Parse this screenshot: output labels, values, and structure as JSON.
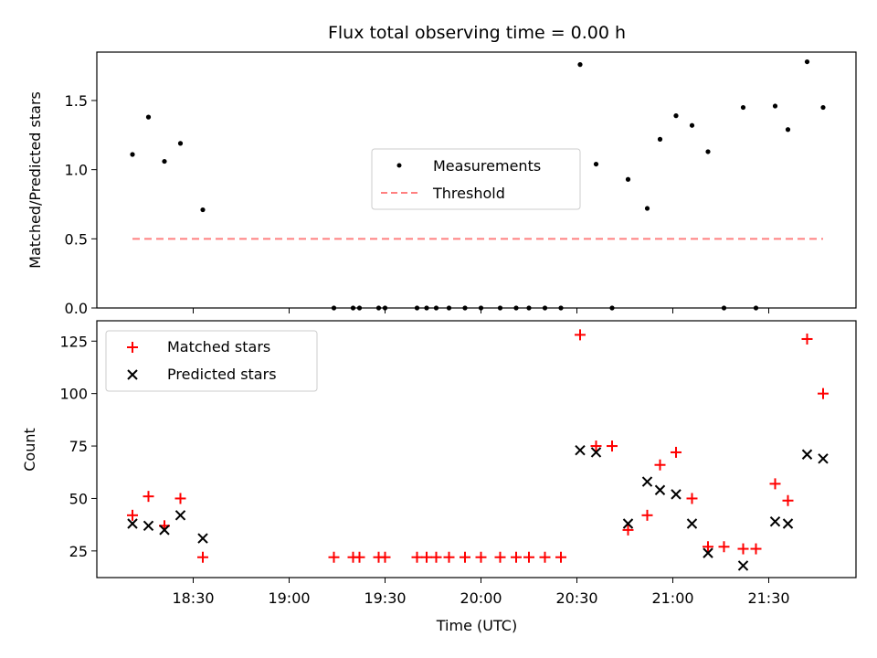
{
  "chart_data": [
    {
      "type": "scatter",
      "title": "Flux total observing time = 0.00 h",
      "xlabel": "",
      "ylabel": "Matched/Predicted stars",
      "ylim": [
        0,
        1.85
      ],
      "yticks": [
        "0.0",
        "0.5",
        "1.0",
        "1.5"
      ],
      "legend_position": "center",
      "series": [
        {
          "name": "Measurements",
          "color": "#000000",
          "marker": "dot",
          "x": [
            "18:11",
            "18:16",
            "18:21",
            "18:26",
            "18:33",
            "19:14",
            "19:20",
            "19:22",
            "19:28",
            "19:30",
            "19:40",
            "19:43",
            "19:46",
            "19:50",
            "19:55",
            "20:00",
            "20:06",
            "20:11",
            "20:15",
            "20:20",
            "20:25",
            "20:31",
            "20:36",
            "20:41",
            "20:46",
            "20:52",
            "20:56",
            "21:01",
            "21:06",
            "21:11",
            "21:16",
            "21:22",
            "21:26",
            "21:32",
            "21:36",
            "21:42",
            "21:47"
          ],
          "y": [
            1.11,
            1.38,
            1.06,
            1.19,
            0.71,
            0,
            0,
            0,
            0,
            0,
            0,
            0,
            0,
            0,
            0,
            0,
            0,
            0,
            0,
            0,
            0,
            1.76,
            1.04,
            0,
            0.93,
            0.72,
            1.22,
            1.39,
            1.32,
            1.13,
            0,
            1.45,
            0,
            1.46,
            1.29,
            1.78,
            1.45
          ]
        },
        {
          "name": "Threshold",
          "color": "#ff8080",
          "style": "dashed",
          "x": [
            "18:11",
            "21:47"
          ],
          "y": [
            0.5,
            0.5
          ]
        }
      ]
    },
    {
      "type": "scatter",
      "title": "",
      "xlabel": "Time (UTC)",
      "ylabel": "Count",
      "ylim": [
        12.3,
        134.7
      ],
      "yticks": [
        "25",
        "50",
        "75",
        "100",
        "125"
      ],
      "xticks": [
        "18:30",
        "19:00",
        "19:30",
        "20:00",
        "20:30",
        "21:00",
        "21:30"
      ],
      "legend_position": "top-left",
      "series": [
        {
          "name": "Matched stars",
          "color": "#ff0000",
          "marker": "plus",
          "x": [
            "18:11",
            "18:16",
            "18:21",
            "18:26",
            "18:33",
            "19:14",
            "19:20",
            "19:22",
            "19:28",
            "19:30",
            "19:40",
            "19:43",
            "19:46",
            "19:50",
            "19:55",
            "20:00",
            "20:06",
            "20:11",
            "20:15",
            "20:20",
            "20:25",
            "20:31",
            "20:36",
            "20:41",
            "20:46",
            "20:52",
            "20:56",
            "21:01",
            "21:06",
            "21:11",
            "21:16",
            "21:22",
            "21:26",
            "21:32",
            "21:36",
            "21:42",
            "21:47"
          ],
          "y": [
            42,
            51,
            37,
            50,
            22,
            22,
            22,
            22,
            22,
            22,
            22,
            22,
            22,
            22,
            22,
            22,
            22,
            22,
            22,
            22,
            22,
            128,
            75,
            75,
            35,
            42,
            66,
            72,
            50,
            27,
            27,
            26,
            26,
            57,
            49,
            126,
            100
          ]
        },
        {
          "name": "Predicted stars",
          "color": "#000000",
          "marker": "x",
          "x": [
            "18:11",
            "18:16",
            "18:21",
            "18:26",
            "18:33",
            "20:31",
            "20:36",
            "20:46",
            "20:52",
            "20:56",
            "21:01",
            "21:06",
            "21:11",
            "21:22",
            "21:32",
            "21:36",
            "21:42",
            "21:47"
          ],
          "y": [
            38,
            37,
            35,
            42,
            31,
            73,
            72,
            38,
            58,
            54,
            52,
            38,
            24,
            18,
            39,
            38,
            71,
            69
          ]
        }
      ]
    }
  ]
}
